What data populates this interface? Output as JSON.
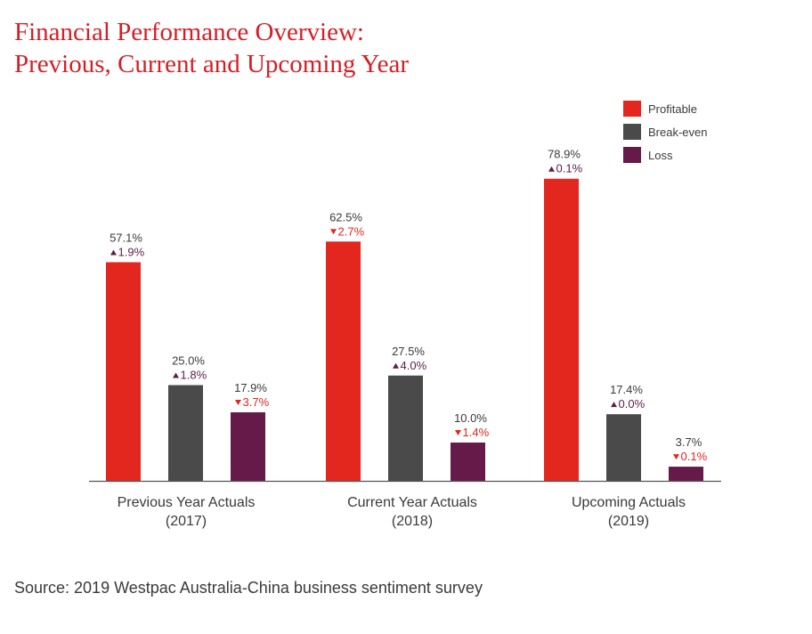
{
  "title_lines": [
    "Financial Performance Overview:",
    "Previous, Current and Upcoming Year"
  ],
  "source": "Source: 2019 Westpac Australia-China business sentiment survey",
  "colors": {
    "profitable": "#e3261e",
    "break_even": "#4a4a4a",
    "loss": "#651a4a",
    "change_up": "#5a1f48",
    "change_down": "#e3261e",
    "value_text": "#3a3a3a"
  },
  "chart_data": {
    "type": "bar",
    "categories": [
      [
        "Previous Year Actuals",
        "(2017)"
      ],
      [
        "Current Year Actuals",
        "(2018)"
      ],
      [
        "Upcoming Actuals",
        "(2019)"
      ]
    ],
    "series": [
      {
        "name": "Profitable",
        "color": "#e3261e",
        "values": [
          57.1,
          62.5,
          78.9
        ],
        "value_labels": [
          "57.1%",
          "62.5%",
          "78.9%"
        ],
        "changes": [
          {
            "direction": "up",
            "label": "1.9%"
          },
          {
            "direction": "down",
            "label": "2.7%"
          },
          {
            "direction": "up",
            "label": "0.1%"
          }
        ]
      },
      {
        "name": "Break-even",
        "color": "#4a4a4a",
        "values": [
          25.0,
          27.5,
          17.4
        ],
        "value_labels": [
          "25.0%",
          "27.5%",
          "17.4%"
        ],
        "changes": [
          {
            "direction": "up",
            "label": "1.8%"
          },
          {
            "direction": "up",
            "label": "4.0%"
          },
          {
            "direction": "up",
            "label": "0.0%"
          }
        ]
      },
      {
        "name": "Loss",
        "color": "#651a4a",
        "values": [
          17.9,
          10.0,
          3.7
        ],
        "value_labels": [
          "17.9%",
          "10.0%",
          "3.7%"
        ],
        "changes": [
          {
            "direction": "down",
            "label": "3.7%"
          },
          {
            "direction": "down",
            "label": "1.4%"
          },
          {
            "direction": "down",
            "label": "0.1%"
          }
        ]
      }
    ],
    "ylim": [
      0,
      100
    ],
    "grid": false,
    "legend_position": "top-right"
  }
}
